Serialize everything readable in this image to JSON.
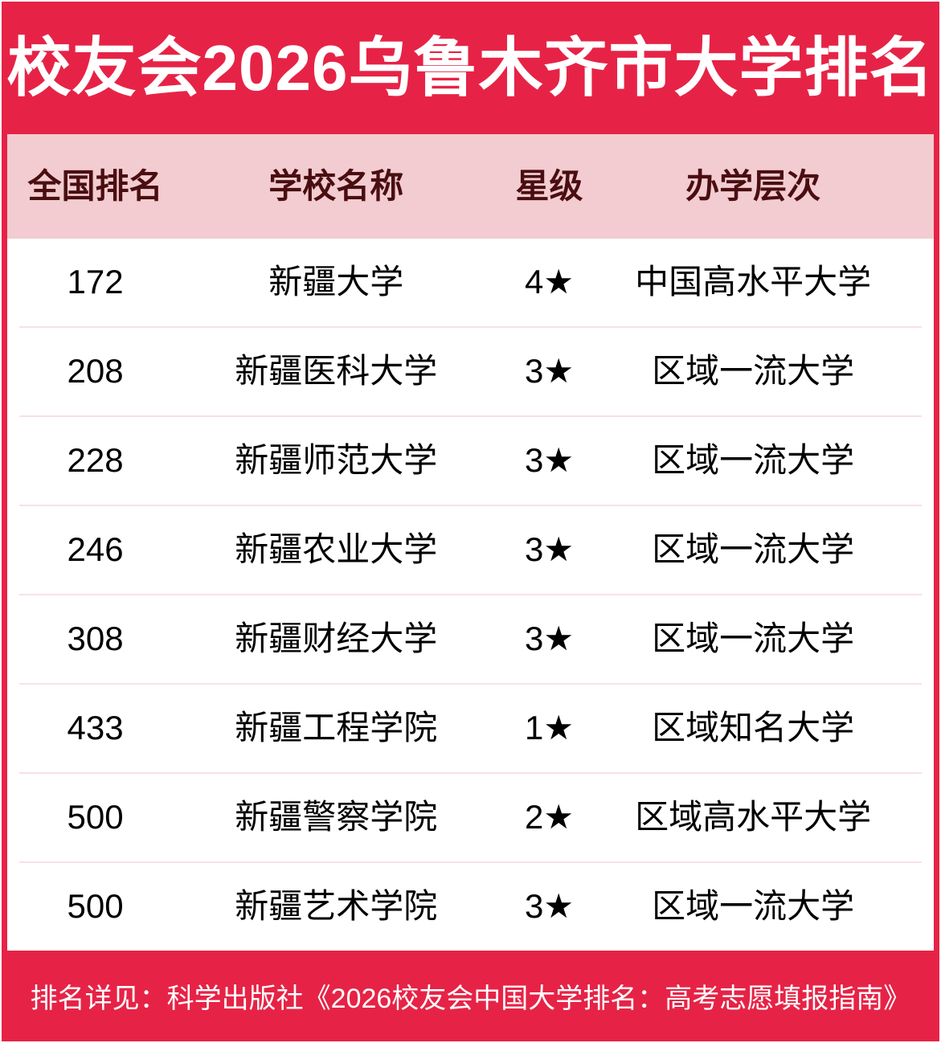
{
  "header": {
    "title": "校友会2026乌鲁木齐市大学排名"
  },
  "table": {
    "headers": [
      "全国排名",
      "学校名称",
      "星级",
      "办学层次"
    ],
    "rows": [
      {
        "rank": "172",
        "school": "新疆大学",
        "stars": "4★",
        "level": "中国高水平大学"
      },
      {
        "rank": "208",
        "school": "新疆医科大学",
        "stars": "3★",
        "level": "区域一流大学"
      },
      {
        "rank": "228",
        "school": "新疆师范大学",
        "stars": "3★",
        "level": "区域一流大学"
      },
      {
        "rank": "246",
        "school": "新疆农业大学",
        "stars": "3★",
        "level": "区域一流大学"
      },
      {
        "rank": "308",
        "school": "新疆财经大学",
        "stars": "3★",
        "level": "区域一流大学"
      },
      {
        "rank": "433",
        "school": "新疆工程学院",
        "stars": "1★",
        "level": "区域知名大学"
      },
      {
        "rank": "500",
        "school": "新疆警察学院",
        "stars": "2★",
        "level": "区域高水平大学"
      },
      {
        "rank": "500",
        "school": "新疆艺术学院",
        "stars": "3★",
        "level": "区域一流大学"
      }
    ]
  },
  "footer": {
    "text": "排名详见：科学出版社《2026校友会中国大学排名：高考志愿填报指南》"
  },
  "colors": {
    "accent_red": "#E62346",
    "header_row_pink": "#F2CCD0",
    "header_text_maroon": "#4A0E11",
    "row_divider_pink": "#F8E0E3",
    "body_text": "#000000",
    "title_text": "#FFFFFF"
  }
}
